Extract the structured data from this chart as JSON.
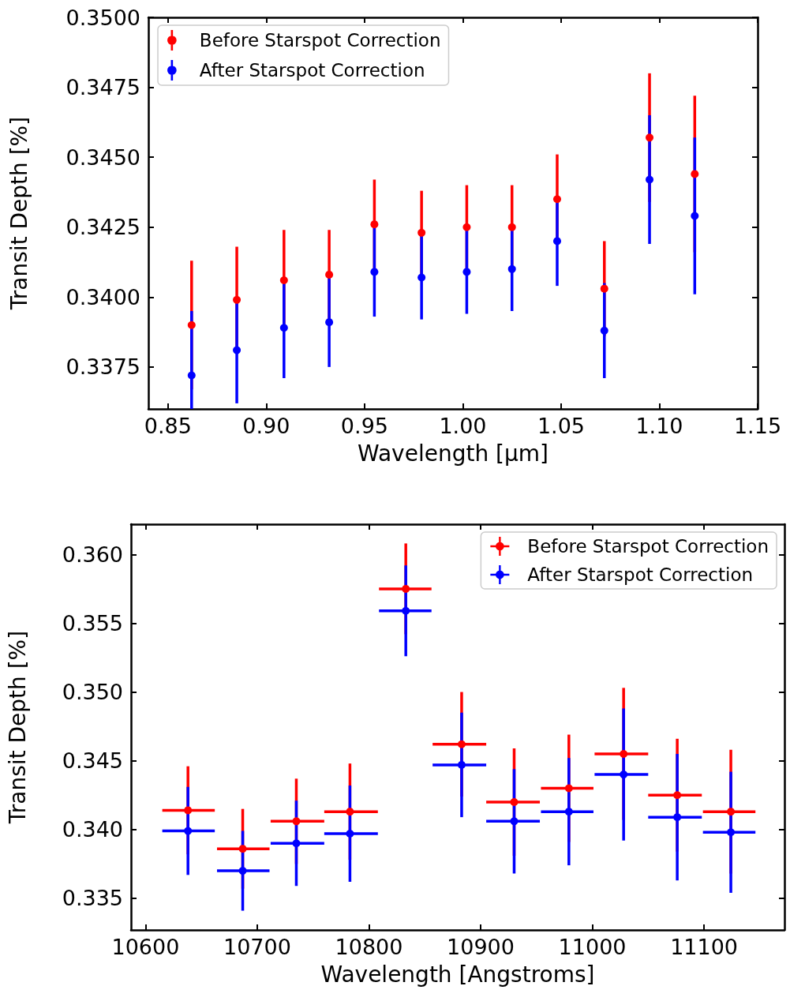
{
  "chart_data": [
    {
      "type": "scatter",
      "xlabel": "Wavelength [μm]",
      "ylabel": "Transit Depth [%]",
      "marker": "circle",
      "legend": "top left",
      "grid": false,
      "x": [
        0.862,
        0.885,
        0.909,
        0.932,
        0.955,
        0.979,
        1.002,
        1.025,
        1.048,
        1.072,
        1.095,
        1.118
      ],
      "xlim": [
        0.84,
        1.15
      ],
      "xticks": [
        {
          "value": 0.85,
          "label": "0.85"
        },
        {
          "value": 0.9,
          "label": "0.90"
        },
        {
          "value": 0.95,
          "label": "0.95"
        },
        {
          "value": 1.0,
          "label": "1.00"
        },
        {
          "value": 1.05,
          "label": "1.05"
        },
        {
          "value": 1.1,
          "label": "1.10"
        },
        {
          "value": 1.15,
          "label": "1.15"
        }
      ],
      "ylim": [
        0.336,
        0.35
      ],
      "yticks": [
        0.3375,
        {
          "value": 0.34,
          "label": "0.3400"
        },
        0.3425,
        {
          "value": 0.345,
          "label": "0.3450"
        },
        0.3475,
        {
          "value": 0.35,
          "label": "0.3500"
        }
      ],
      "series": [
        {
          "name": "Before Starspot Correction",
          "color": "#ff0000",
          "values": [
            0.339,
            0.3399,
            0.3406,
            0.3408,
            0.3426,
            0.3423,
            0.3425,
            0.3425,
            0.3435,
            0.3403,
            0.3457,
            0.3444
          ],
          "errors": [
            0.0023,
            0.0019,
            0.0018,
            0.0016,
            0.0016,
            0.0015,
            0.0015,
            0.0015,
            0.0016,
            0.0017,
            0.0023,
            0.0028
          ]
        },
        {
          "name": "After Starspot Correction",
          "color": "#0000ff",
          "values": [
            0.3372,
            0.3381,
            0.3389,
            0.3391,
            0.3409,
            0.3407,
            0.3409,
            0.341,
            0.342,
            0.3388,
            0.3442,
            0.3429
          ],
          "errors": [
            [
              0.336,
              0.3395
            ],
            0.0019,
            0.0018,
            0.0016,
            0.0016,
            0.0015,
            0.0015,
            0.0015,
            0.0016,
            0.0017,
            0.0023,
            0.0028
          ]
        }
      ]
    },
    {
      "type": "scatter",
      "xlabel": "Wavelength [Angstroms]",
      "ylabel": "Transit Depth [%]",
      "marker": "circle",
      "legend": "top right",
      "grid": false,
      "x": [
        10638,
        10687,
        10735,
        10783,
        10833,
        10883,
        10930,
        10979,
        11028,
        11076,
        11124
      ],
      "xlim": [
        10587,
        11172
      ],
      "xticks": [
        10600,
        10700,
        10800,
        10900,
        11000,
        11100
      ],
      "ylim": [
        0.3327,
        0.3622
      ],
      "yticks": [
        0.335,
        {
          "value": 0.34,
          "label": "0.340"
        },
        0.345,
        {
          "value": 0.35,
          "label": "0.350"
        },
        0.355,
        {
          "value": 0.36,
          "label": "0.360"
        }
      ],
      "series": [
        {
          "name": "Before Starspot Correction",
          "color": "#ff0000",
          "values": [
            0.3414,
            0.3386,
            0.3406,
            0.3413,
            0.3575,
            0.3462,
            0.342,
            0.343,
            0.3455,
            0.3425,
            0.3413
          ],
          "errors": [
            0.0032,
            0.0029,
            0.0031,
            0.0035,
            0.0033,
            0.0038,
            0.0039,
            0.0039,
            0.0048,
            0.0041,
            0.0045
          ],
          "xerrors": [
            [
              10615,
              10662
            ],
            [
              10664,
              10711
            ],
            [
              10712,
              10760
            ],
            [
              10760,
              10808
            ],
            [
              10809,
              10856
            ],
            [
              10857,
              10905
            ],
            [
              10905,
              10953
            ],
            [
              10954,
              11001
            ],
            [
              11002,
              11050
            ],
            [
              11050,
              11098
            ],
            [
              11099,
              11146
            ]
          ]
        },
        {
          "name": "After Starspot Correction",
          "color": "#0000ff",
          "values": [
            0.3399,
            0.337,
            0.339,
            0.3397,
            0.3559,
            0.3447,
            0.3406,
            0.3413,
            0.344,
            0.3409,
            0.3398
          ],
          "errors": [
            0.0032,
            0.0029,
            0.0031,
            0.0035,
            0.0033,
            0.0038,
            0.0038,
            0.0039,
            0.0048,
            0.0046,
            0.0044
          ],
          "xerrors": [
            [
              10615,
              10662
            ],
            [
              10664,
              10711
            ],
            [
              10712,
              10760
            ],
            [
              10760,
              10808
            ],
            [
              10809,
              10856
            ],
            [
              10857,
              10905
            ],
            [
              10905,
              10953
            ],
            [
              10954,
              11001
            ],
            [
              11002,
              11050
            ],
            [
              11050,
              11098
            ],
            [
              11099,
              11146
            ]
          ]
        }
      ]
    }
  ]
}
